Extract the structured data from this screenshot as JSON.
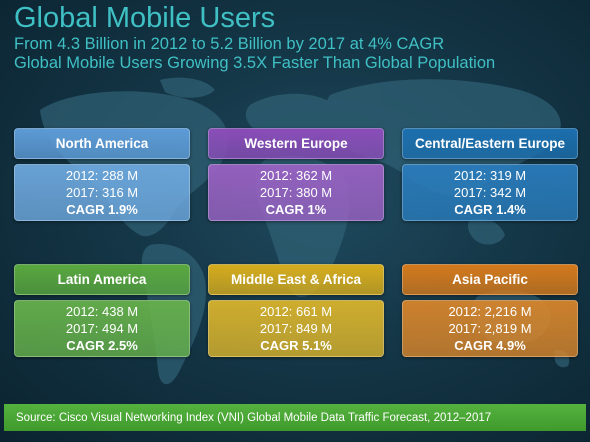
{
  "header": {
    "title": "Global Mobile Users",
    "subtitle_line1": "From 4.3 Billion in 2012 to 5.2 Billion by 2017 at 4% CAGR",
    "subtitle_line2": "Global Mobile Users Growing 3.5X Faster Than Global Population",
    "color": "#3fc0c4"
  },
  "regions": [
    {
      "name": "North America",
      "line_2012": "2012: 288 M",
      "line_2017": "2017: 316 M",
      "cagr": "CAGR 1.9%",
      "head_color": "#5d9bd6",
      "body_color": "#6ea9df"
    },
    {
      "name": "Western Europe",
      "line_2012": "2012: 362 M",
      "line_2017": "2017: 380 M",
      "cagr": "CAGR 1%",
      "head_color": "#8a4db8",
      "body_color": "#9b62c4"
    },
    {
      "name": "Central/Eastern Europe",
      "line_2012": "2012: 319 M",
      "line_2017": "2017: 342 M",
      "cagr": "CAGR 1.4%",
      "head_color": "#1c6fae",
      "body_color": "#2a7cbc"
    },
    {
      "name": "Latin America",
      "line_2012": "2012: 438 M",
      "line_2017": "2017: 494 M",
      "cagr": "CAGR 2.5%",
      "head_color": "#5aa83f",
      "body_color": "#67b24b"
    },
    {
      "name": "Middle East & Africa",
      "line_2012": "2012: 661 M",
      "line_2017": "2017: 849 M",
      "cagr": "CAGR 5.1%",
      "head_color": "#d6ac1d",
      "body_color": "#dcb52c"
    },
    {
      "name": "Asia Pacific",
      "line_2012": "2012: 2,216 M",
      "line_2017": "2017: 2,819 M",
      "cagr": "CAGR 4.9%",
      "head_color": "#d47a1c",
      "body_color": "#d9862b"
    }
  ],
  "footer": {
    "source": "Source: Cisco Visual Networking Index (VNI) Global Mobile Data Traffic Forecast, 2012–2017",
    "color": "#4aa836"
  }
}
